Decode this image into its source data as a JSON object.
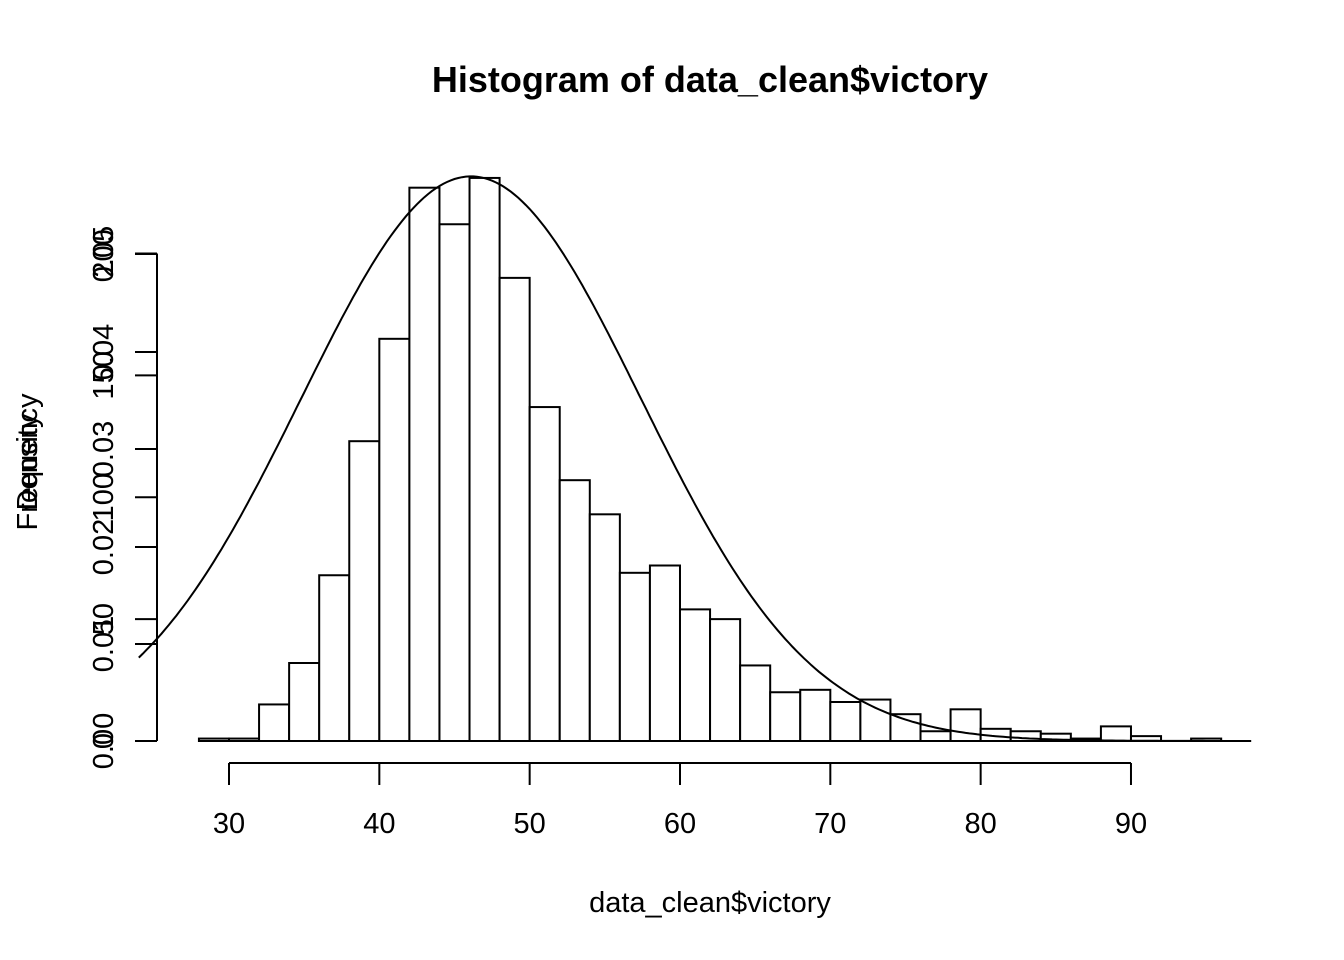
{
  "chart_data": {
    "type": "bar",
    "title": "Histogram of data_clean$victory",
    "xlabel": "data_clean$victory",
    "ylabel_left": "Frequency",
    "ylabel_right": "Density",
    "x_ticks": [
      30,
      40,
      50,
      60,
      70,
      80,
      90
    ],
    "y_ticks_frequency": [
      0,
      50,
      100,
      150,
      200
    ],
    "y_ticks_density": [
      "0.00",
      "0.01",
      "0.02",
      "0.03",
      "0.04",
      "0.05"
    ],
    "xlim": [
      24,
      98
    ],
    "ylim_frequency": [
      0,
      235
    ],
    "ylim_density": [
      0,
      0.06
    ],
    "bin_width": 2,
    "bin_starts": [
      28,
      30,
      32,
      34,
      36,
      38,
      40,
      42,
      44,
      46,
      48,
      50,
      52,
      54,
      56,
      58,
      60,
      62,
      64,
      66,
      68,
      70,
      72,
      74,
      76,
      78,
      80,
      82,
      84,
      86,
      88,
      90,
      92,
      94
    ],
    "frequencies": [
      1,
      1,
      15,
      32,
      68,
      123,
      165,
      227,
      212,
      231,
      190,
      137,
      107,
      93,
      69,
      72,
      54,
      50,
      31,
      20,
      21,
      16,
      17,
      11,
      4,
      13,
      5,
      4,
      3,
      1,
      6,
      2,
      0,
      1
    ],
    "density_curve": {
      "mean": 46.1,
      "sd": 11.3,
      "peak_density": 0.058
    },
    "grid": false,
    "legend": "none"
  }
}
